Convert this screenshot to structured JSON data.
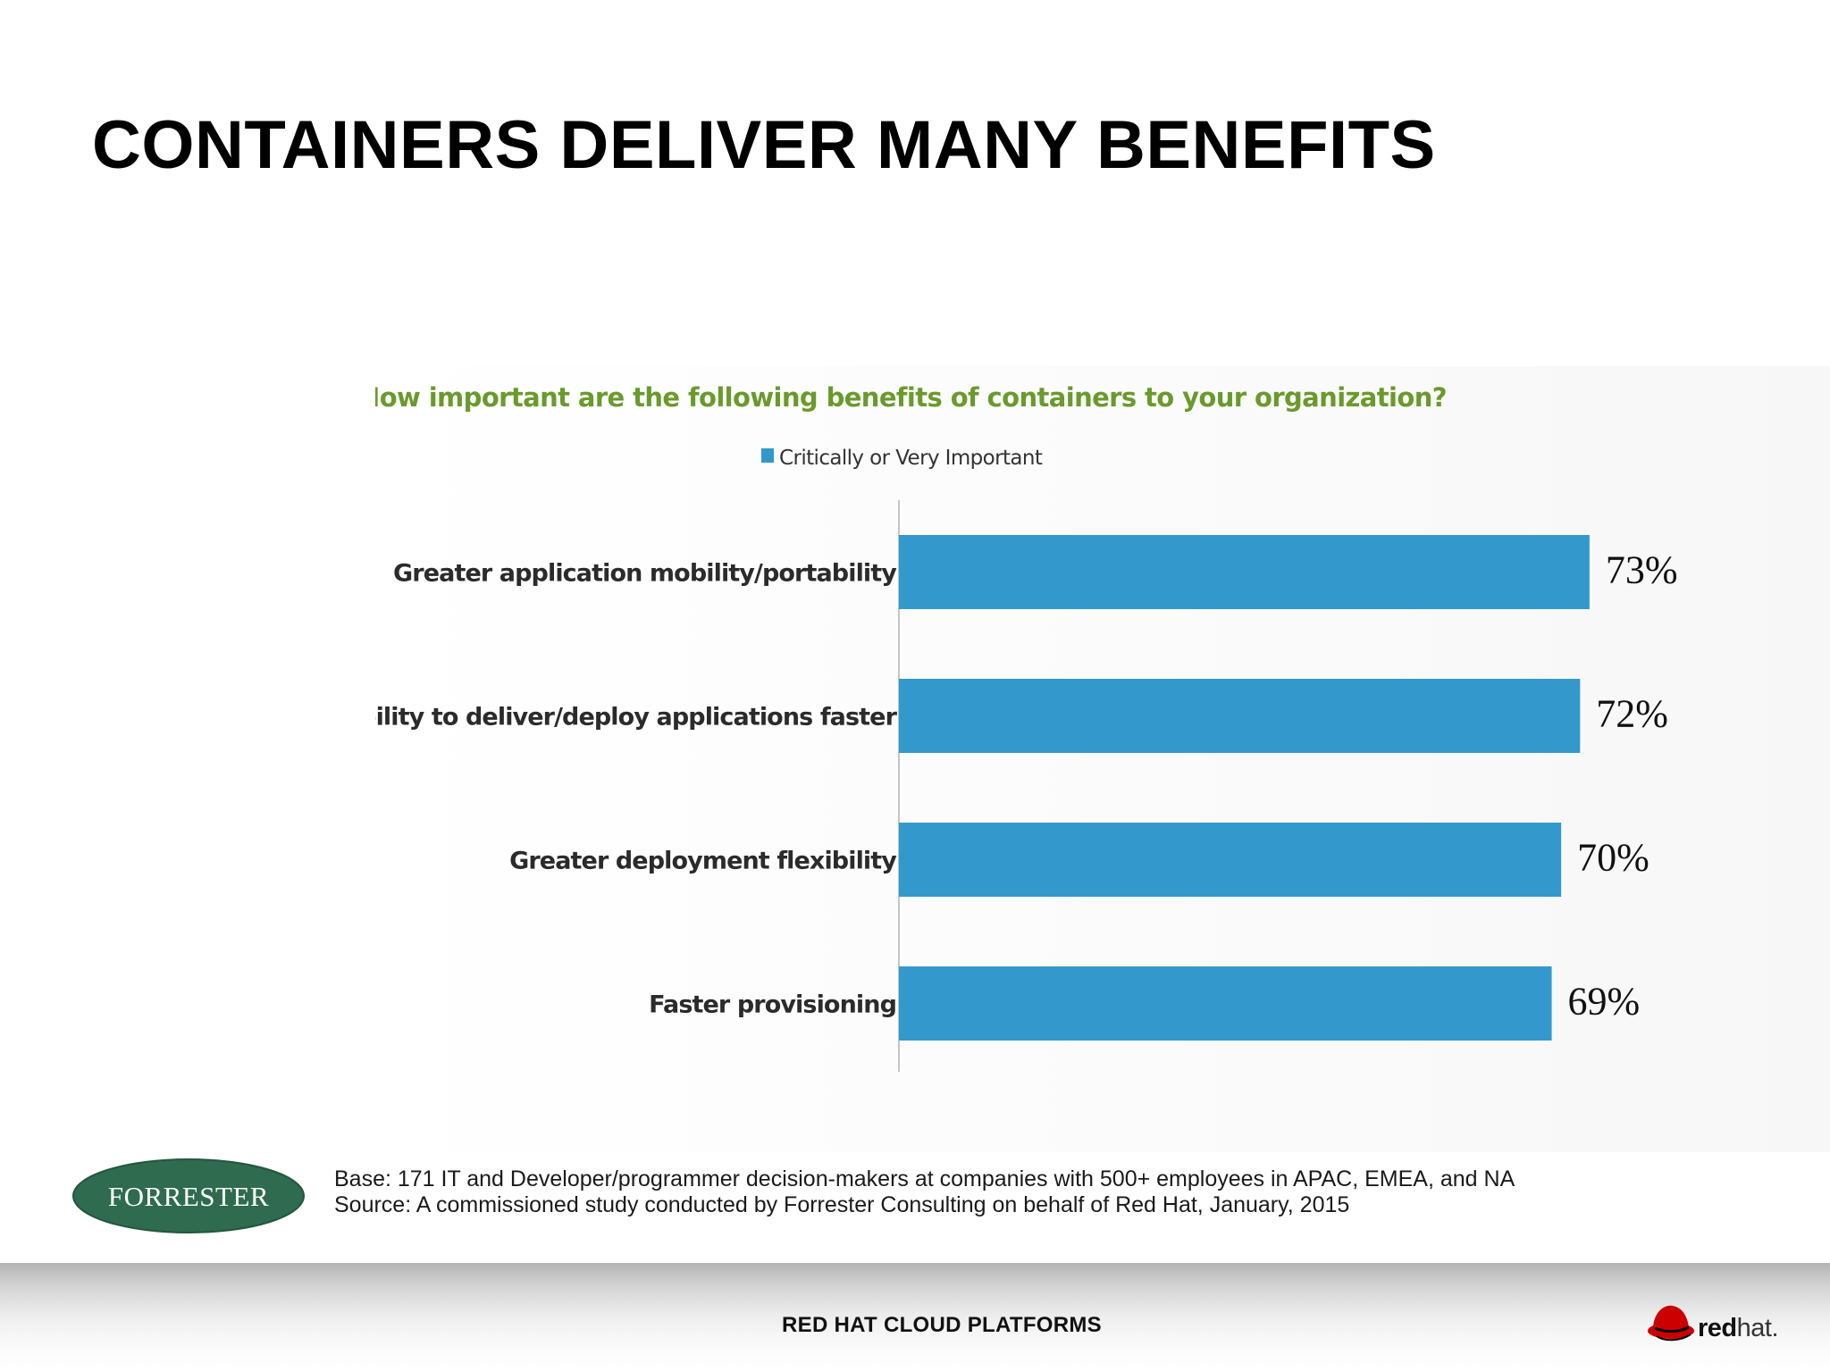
{
  "slide": {
    "title": "CONTAINERS DELIVER MANY BENEFITS"
  },
  "chart_data": {
    "type": "bar",
    "orientation": "horizontal",
    "title": "How important are the following benefits of containers to your organization?",
    "categories": [
      "Greater application mobility/portability",
      "Ability to deliver/deploy applications faster",
      "Greater deployment flexibility",
      "Faster provisioning"
    ],
    "series": [
      {
        "name": "Critically or Very Important",
        "values": [
          73,
          72,
          70,
          69
        ],
        "labels": [
          "73%",
          "72%",
          "70%",
          "69%"
        ],
        "color": "#3399cc"
      }
    ],
    "xlim": [
      0,
      80
    ],
    "unit": "%",
    "grid": false,
    "legend_position": "top",
    "title_color": "#6a9a2c"
  },
  "notes": {
    "base": "Base: 171 IT and Developer/programmer decision-makers at companies with 500+ employees in APAC, EMEA, and NA",
    "source": "Source: A commissioned study conducted by Forrester Consulting on behalf of Red Hat, January, 2015"
  },
  "logos": {
    "forrester": {
      "text": "FORRESTER",
      "color": "#2f6b4f"
    },
    "redhat": {
      "text": "redhat.",
      "color": "#cc0000"
    }
  },
  "footer": {
    "text": "RED HAT CLOUD PLATFORMS"
  }
}
